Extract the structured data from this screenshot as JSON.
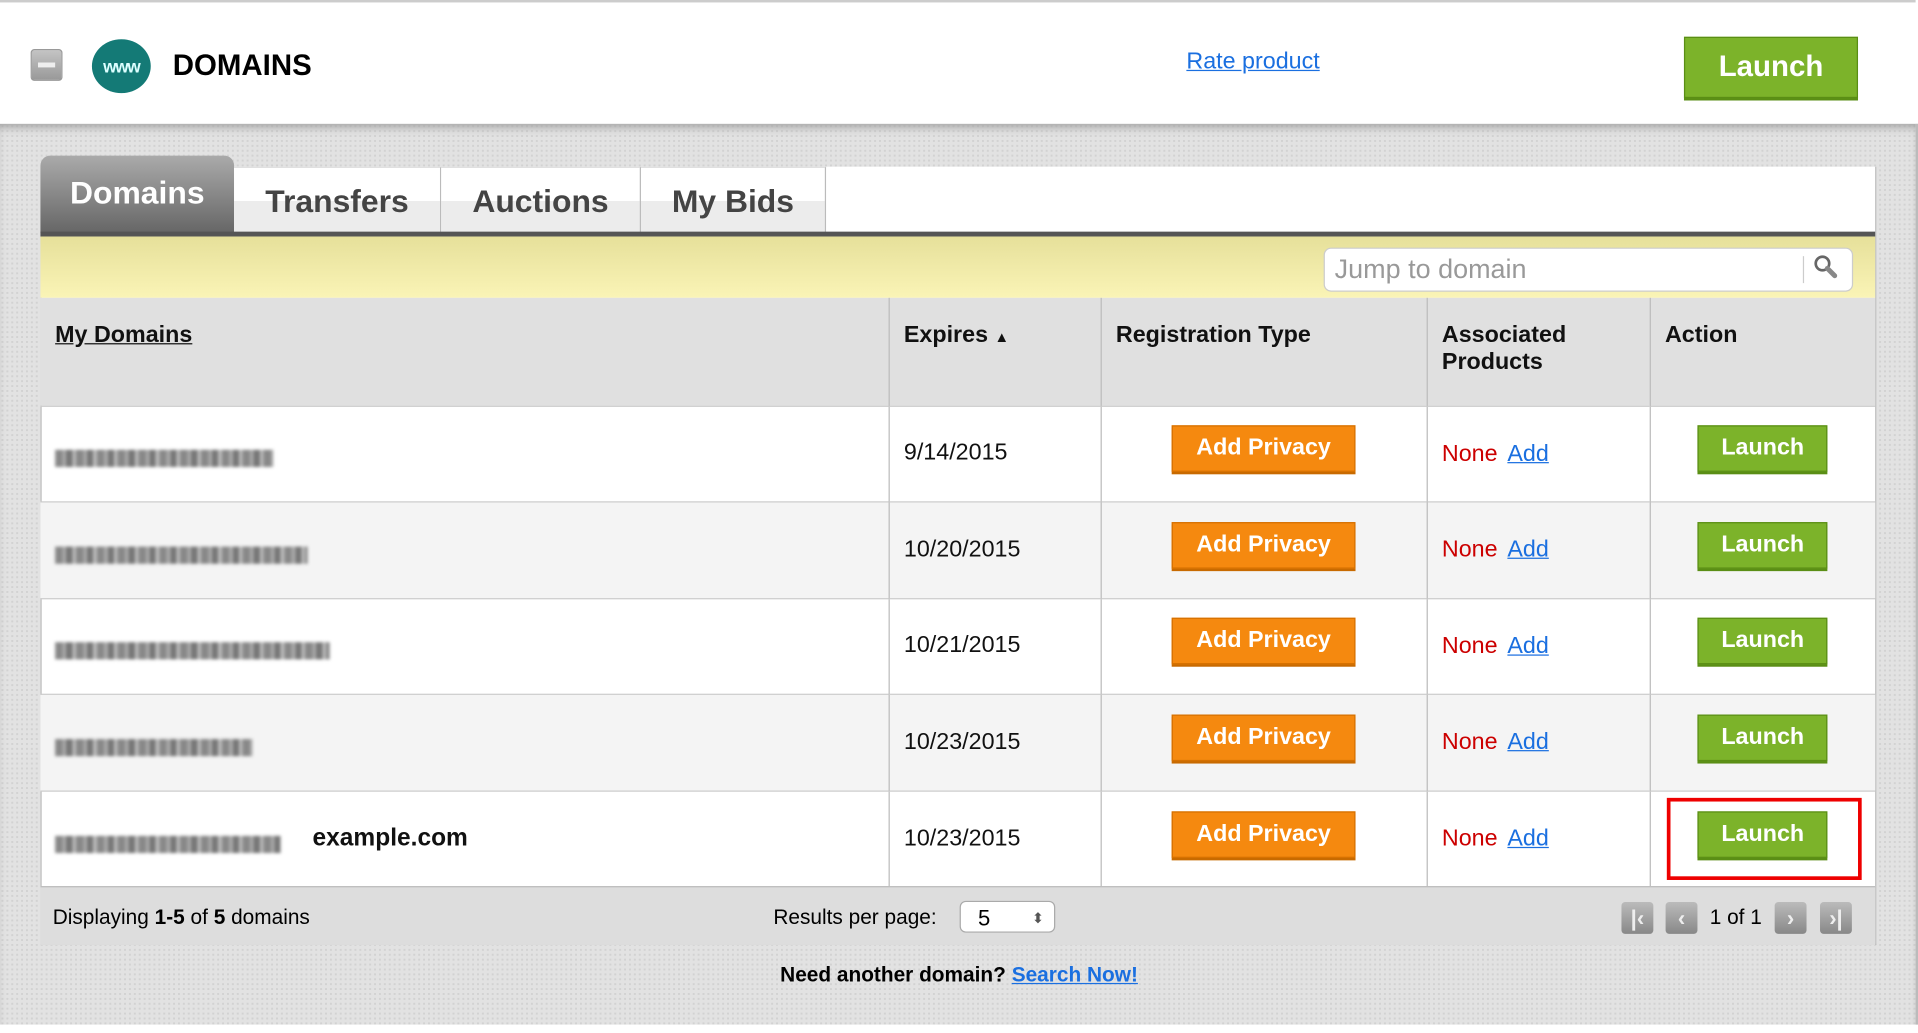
{
  "header": {
    "title": "DOMAINS",
    "logo_text": "www",
    "rate_link": "Rate product",
    "launch_label": "Launch"
  },
  "tabs": [
    {
      "label": "Domains",
      "active": true
    },
    {
      "label": "Transfers"
    },
    {
      "label": "Auctions"
    },
    {
      "label": "My Bids"
    }
  ],
  "search": {
    "placeholder": "Jump to domain"
  },
  "table": {
    "columns": [
      "My Domains",
      "Expires",
      "Registration Type",
      "Associated Products",
      "Action"
    ],
    "sort_indicator": "▲",
    "rows": [
      {
        "expires": "9/14/2015",
        "privacy": "Add Privacy",
        "products": "None",
        "add": "Add",
        "action": "Launch"
      },
      {
        "expires": "10/20/2015",
        "privacy": "Add Privacy",
        "products": "None",
        "add": "Add",
        "action": "Launch"
      },
      {
        "expires": "10/21/2015",
        "privacy": "Add Privacy",
        "products": "None",
        "add": "Add",
        "action": "Launch"
      },
      {
        "expires": "10/23/2015",
        "privacy": "Add Privacy",
        "products": "None",
        "add": "Add",
        "action": "Launch"
      },
      {
        "expires": "10/23/2015",
        "privacy": "Add Privacy",
        "products": "None",
        "add": "Add",
        "action": "Launch",
        "annotation": "example.com"
      }
    ]
  },
  "footer": {
    "displaying_prefix": "Displaying ",
    "range": "1-5",
    "of": " of ",
    "total": "5",
    "suffix": " domains",
    "results_per_page_label": "Results per page:",
    "results_per_page": "5",
    "page_info": "1 of 1"
  },
  "bottom": {
    "prompt": "Need another domain?",
    "link": "Search Now!"
  },
  "colors": {
    "launch": "#7cb32a",
    "privacy": "#f5890f",
    "none": "#cc0000",
    "link": "#1a6fe0",
    "highlight": "#ee0000"
  }
}
